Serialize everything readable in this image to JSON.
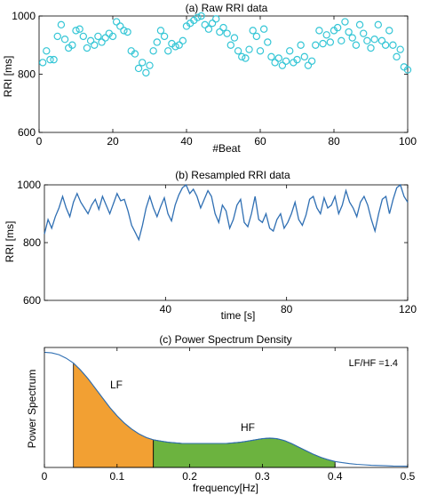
{
  "colors": {
    "marker": "#35c6d6",
    "line": "#2f6fb3",
    "lf_fill": "#f2a033",
    "hf_fill": "#6cb33f",
    "axis": "#000000"
  },
  "chart_data": [
    {
      "type": "scatter",
      "title": "(a) Raw RRI data",
      "xlabel": "#Beat",
      "ylabel": "RRI [ms]",
      "xlim": [
        0,
        100
      ],
      "ylim": [
        600,
        1000
      ],
      "x_ticks": [
        0,
        20,
        40,
        60,
        80,
        100
      ],
      "y_ticks": [
        600,
        800,
        1000
      ],
      "x_tick_labels": [
        "0",
        "20",
        "40",
        "60",
        "80",
        "100"
      ],
      "y_tick_labels": [
        "600",
        "800",
        "1000"
      ],
      "marker": "open-circle",
      "x": [
        1,
        2,
        3,
        4,
        5,
        6,
        7,
        8,
        9,
        10,
        11,
        12,
        13,
        14,
        15,
        16,
        17,
        18,
        19,
        20,
        21,
        22,
        23,
        24,
        25,
        26,
        27,
        28,
        29,
        30,
        31,
        32,
        33,
        34,
        35,
        36,
        37,
        38,
        39,
        40,
        41,
        42,
        43,
        44,
        45,
        46,
        47,
        48,
        49,
        50,
        51,
        52,
        53,
        54,
        55,
        56,
        57,
        58,
        59,
        60,
        61,
        62,
        63,
        64,
        65,
        66,
        67,
        68,
        69,
        70,
        71,
        72,
        73,
        74,
        75,
        76,
        77,
        78,
        79,
        80,
        81,
        82,
        83,
        84,
        85,
        86,
        87,
        88,
        89,
        90,
        91,
        92,
        93,
        94,
        95,
        96,
        97,
        98,
        99,
        100
      ],
      "y": [
        840,
        880,
        850,
        850,
        930,
        970,
        920,
        890,
        900,
        950,
        955,
        930,
        890,
        915,
        900,
        930,
        910,
        925,
        940,
        930,
        980,
        965,
        950,
        945,
        880,
        870,
        820,
        840,
        805,
        830,
        880,
        910,
        950,
        930,
        880,
        905,
        895,
        900,
        915,
        965,
        975,
        985,
        995,
        1000,
        970,
        955,
        975,
        990,
        945,
        960,
        940,
        900,
        925,
        880,
        860,
        855,
        885,
        950,
        930,
        880,
        955,
        910,
        860,
        840,
        855,
        830,
        845,
        880,
        840,
        850,
        900,
        860,
        830,
        845,
        900,
        950,
        905,
        935,
        910,
        950,
        960,
        915,
        980,
        945,
        925,
        900,
        970,
        940,
        915,
        890,
        920,
        970,
        915,
        900,
        950,
        900,
        860,
        885,
        825,
        815
      ]
    },
    {
      "type": "line",
      "title": "(b) Resampled RRI data",
      "xlabel": "time [s]",
      "ylabel": "RRI [ms]",
      "xlim": [
        0,
        120
      ],
      "ylim": [
        600,
        1000
      ],
      "x_ticks": [
        40,
        80,
        120
      ],
      "y_ticks": [
        600,
        800,
        1000
      ],
      "x_tick_labels": [
        "40",
        "80",
        "120"
      ],
      "y_tick_labels": [
        "600",
        "800",
        "1000"
      ],
      "x": [
        0,
        1.2,
        2.4,
        3.6,
        4.8,
        6,
        7.2,
        8.4,
        9.6,
        10.8,
        12,
        13.2,
        14.4,
        15.6,
        16.8,
        18,
        19.2,
        20.4,
        21.6,
        22.8,
        24,
        25.2,
        26.4,
        27.6,
        28.8,
        30,
        31.2,
        32.4,
        33.6,
        34.8,
        36,
        37.2,
        38.4,
        39.6,
        40.8,
        42,
        43.2,
        44.4,
        45.6,
        46.8,
        48,
        49.2,
        50.4,
        51.6,
        52.8,
        54,
        55.2,
        56.4,
        57.6,
        58.8,
        60,
        61.2,
        62.4,
        63.6,
        64.8,
        66,
        67.2,
        68.4,
        69.6,
        70.8,
        72,
        73.2,
        74.4,
        75.6,
        76.8,
        78,
        79.2,
        80.4,
        81.6,
        82.8,
        84,
        85.2,
        86.4,
        87.6,
        88.8,
        90,
        91.2,
        92.4,
        93.6,
        94.8,
        96,
        97.2,
        98.4,
        99.6,
        100.8,
        102,
        103.2,
        104.4,
        105.6,
        106.8,
        108,
        109.2,
        110.4,
        111.6,
        112.8,
        114,
        115.2,
        116.4,
        117.6,
        118.8,
        120
      ],
      "y": [
        830,
        880,
        850,
        890,
        920,
        960,
        920,
        890,
        940,
        970,
        940,
        920,
        900,
        930,
        950,
        915,
        960,
        930,
        900,
        935,
        970,
        945,
        950,
        910,
        860,
        835,
        810,
        860,
        920,
        960,
        920,
        890,
        925,
        955,
        900,
        875,
        930,
        965,
        990,
        1000,
        970,
        985,
        960,
        920,
        950,
        980,
        960,
        900,
        870,
        930,
        910,
        850,
        880,
        930,
        950,
        870,
        855,
        900,
        960,
        880,
        870,
        900,
        850,
        840,
        880,
        900,
        850,
        870,
        900,
        940,
        880,
        860,
        895,
        950,
        960,
        920,
        900,
        955,
        920,
        930,
        960,
        900,
        930,
        980,
        940,
        920,
        890,
        940,
        960,
        930,
        880,
        840,
        900,
        950,
        960,
        900,
        950,
        990,
        1000,
        960,
        940
      ]
    },
    {
      "type": "area",
      "title": "(c) Power Spectrum Density",
      "xlabel": "frequency[Hz]",
      "ylabel": "Power Spectrum",
      "xlim": [
        0,
        0.5
      ],
      "ylim": [
        0,
        1
      ],
      "x_ticks": [
        0,
        0.1,
        0.2,
        0.3,
        0.4,
        0.5
      ],
      "x_tick_labels": [
        "0",
        "0.1",
        "0.2",
        "0.3",
        "0.4",
        "0.5"
      ],
      "x": [
        0,
        0.01,
        0.02,
        0.03,
        0.04,
        0.05,
        0.06,
        0.07,
        0.08,
        0.09,
        0.1,
        0.11,
        0.12,
        0.13,
        0.14,
        0.15,
        0.16,
        0.17,
        0.18,
        0.19,
        0.2,
        0.21,
        0.22,
        0.23,
        0.24,
        0.25,
        0.26,
        0.27,
        0.28,
        0.29,
        0.3,
        0.31,
        0.32,
        0.33,
        0.34,
        0.35,
        0.36,
        0.37,
        0.38,
        0.39,
        0.4,
        0.41,
        0.42,
        0.43,
        0.44,
        0.45,
        0.46,
        0.47,
        0.48,
        0.49,
        0.5
      ],
      "y": [
        0.96,
        0.955,
        0.94,
        0.91,
        0.87,
        0.81,
        0.74,
        0.66,
        0.58,
        0.5,
        0.43,
        0.37,
        0.32,
        0.28,
        0.25,
        0.23,
        0.22,
        0.21,
        0.205,
        0.2,
        0.2,
        0.2,
        0.2,
        0.2,
        0.2,
        0.2,
        0.205,
        0.21,
        0.22,
        0.23,
        0.24,
        0.245,
        0.24,
        0.225,
        0.2,
        0.17,
        0.14,
        0.11,
        0.085,
        0.065,
        0.05,
        0.04,
        0.032,
        0.026,
        0.022,
        0.018,
        0.016,
        0.014,
        0.012,
        0.011,
        0.01
      ],
      "bands": [
        {
          "label": "LF",
          "range": [
            0.04,
            0.15
          ]
        },
        {
          "label": "HF",
          "range": [
            0.15,
            0.4
          ]
        }
      ],
      "annotation": "LF/HF =1.4"
    }
  ]
}
